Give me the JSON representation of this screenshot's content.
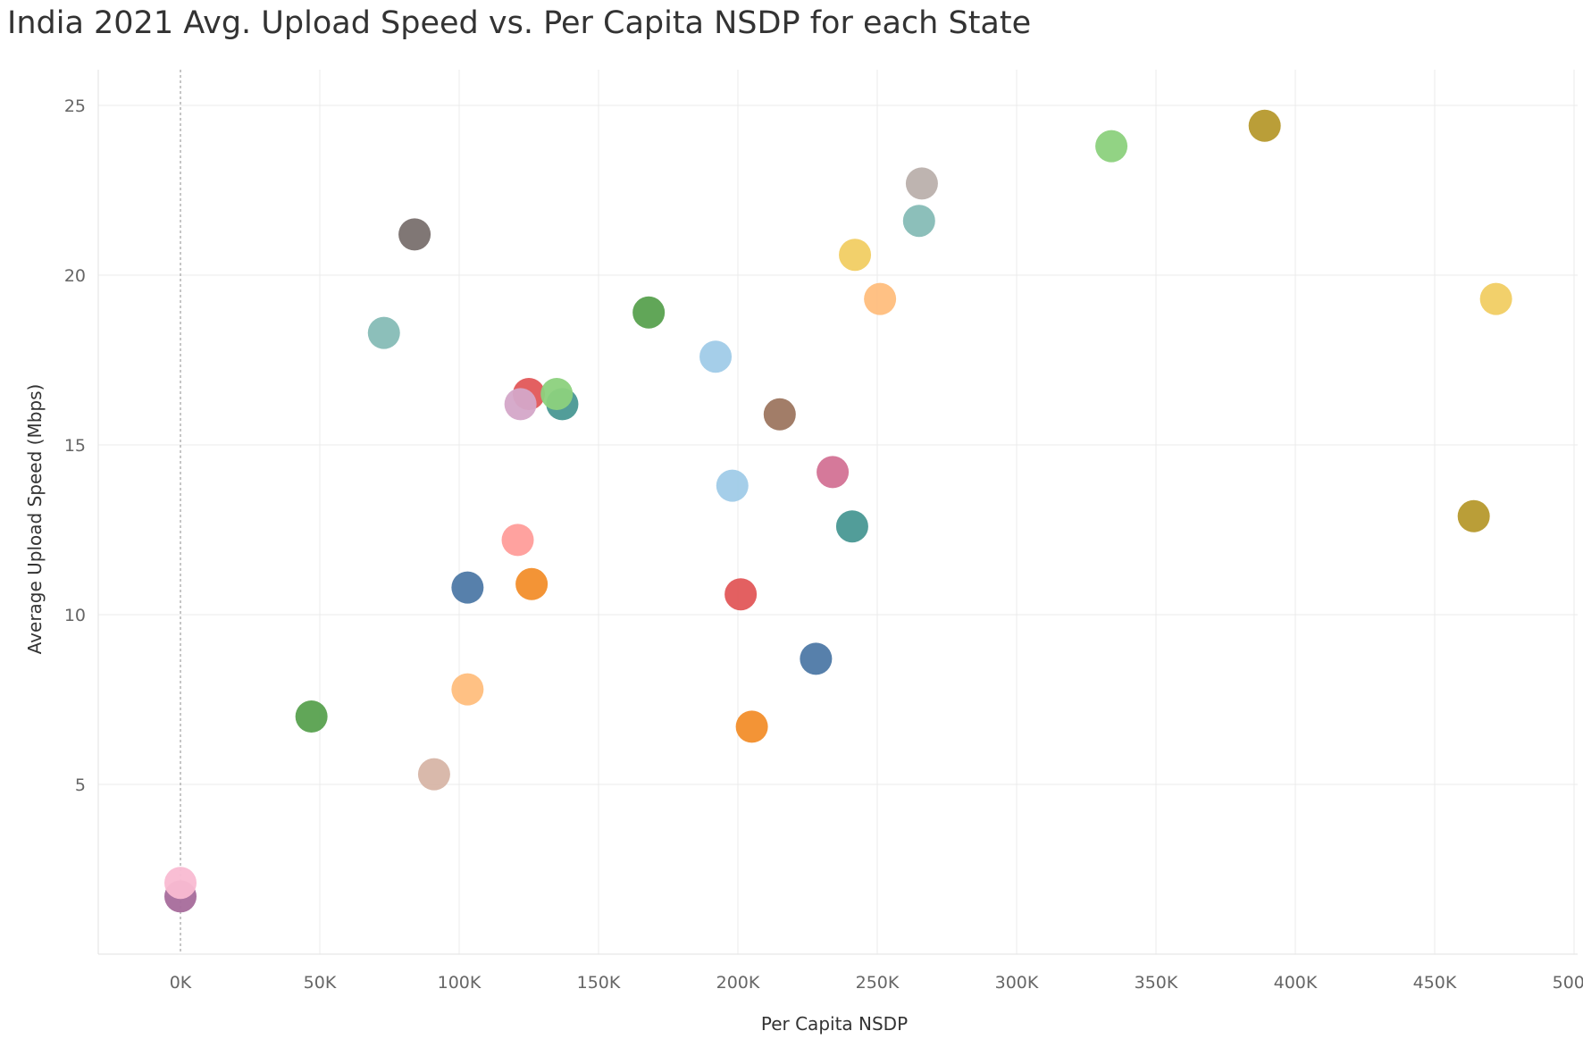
{
  "chart_data": {
    "type": "scatter",
    "title": "India 2021 Avg. Upload Speed vs. Per Capita NSDP for each State",
    "xlabel": "Per Capita NSDP",
    "ylabel": "Average Upload Speed (Mbps)",
    "xlim": [
      -30000,
      502000
    ],
    "ylim": [
      0,
      26
    ],
    "x_ticks": [
      0,
      50000,
      100000,
      150000,
      200000,
      250000,
      300000,
      350000,
      400000,
      450000,
      500000
    ],
    "x_tick_labels": [
      "0K",
      "50K",
      "100K",
      "150K",
      "200K",
      "250K",
      "300K",
      "350K",
      "400K",
      "450K",
      "500K"
    ],
    "y_ticks": [
      5,
      10,
      15,
      20,
      25
    ],
    "y_tick_labels": [
      "5",
      "10",
      "15",
      "20",
      "25"
    ],
    "grid": true,
    "zero_line": "dotted",
    "points": [
      {
        "x": 0,
        "y": 1.7,
        "color": "#a66b9b"
      },
      {
        "x": 0,
        "y": 2.1,
        "color": "#f9bad2"
      },
      {
        "x": 47000,
        "y": 7.0,
        "color": "#59a14f"
      },
      {
        "x": 73000,
        "y": 18.3,
        "color": "#86bcb6"
      },
      {
        "x": 84000,
        "y": 21.2,
        "color": "#79706e"
      },
      {
        "x": 91000,
        "y": 5.3,
        "color": "#d7b5a6"
      },
      {
        "x": 103000,
        "y": 10.8,
        "color": "#4e79a7"
      },
      {
        "x": 103000,
        "y": 7.8,
        "color": "#ffbe7d"
      },
      {
        "x": 121000,
        "y": 12.2,
        "color": "#ff9d9a"
      },
      {
        "x": 125000,
        "y": 16.5,
        "color": "#e15759"
      },
      {
        "x": 126000,
        "y": 10.9,
        "color": "#f28e2b"
      },
      {
        "x": 137000,
        "y": 16.2,
        "color": "#499894"
      },
      {
        "x": 135000,
        "y": 16.5,
        "color": "#8cd17d"
      },
      {
        "x": 122000,
        "y": 16.2,
        "color": "#d4a6c8"
      },
      {
        "x": 168000,
        "y": 18.9,
        "color": "#59a14f"
      },
      {
        "x": 192000,
        "y": 17.6,
        "color": "#a0cbe8"
      },
      {
        "x": 198000,
        "y": 13.8,
        "color": "#a0cbe8"
      },
      {
        "x": 201000,
        "y": 10.6,
        "color": "#e15759"
      },
      {
        "x": 205000,
        "y": 6.7,
        "color": "#f28e2b"
      },
      {
        "x": 215000,
        "y": 15.9,
        "color": "#9d7660"
      },
      {
        "x": 228000,
        "y": 8.7,
        "color": "#4e79a7"
      },
      {
        "x": 234000,
        "y": 14.2,
        "color": "#d37295"
      },
      {
        "x": 241000,
        "y": 12.6,
        "color": "#499894"
      },
      {
        "x": 242000,
        "y": 20.6,
        "color": "#f1ce63"
      },
      {
        "x": 251000,
        "y": 19.3,
        "color": "#ffbe7d"
      },
      {
        "x": 265000,
        "y": 21.6,
        "color": "#86bcb6"
      },
      {
        "x": 266000,
        "y": 22.7,
        "color": "#bab0ac"
      },
      {
        "x": 334000,
        "y": 23.8,
        "color": "#8cd17d"
      },
      {
        "x": 389000,
        "y": 24.4,
        "color": "#b6992d"
      },
      {
        "x": 464000,
        "y": 12.9,
        "color": "#b6992d"
      },
      {
        "x": 472000,
        "y": 19.3,
        "color": "#f1ce63"
      }
    ]
  }
}
